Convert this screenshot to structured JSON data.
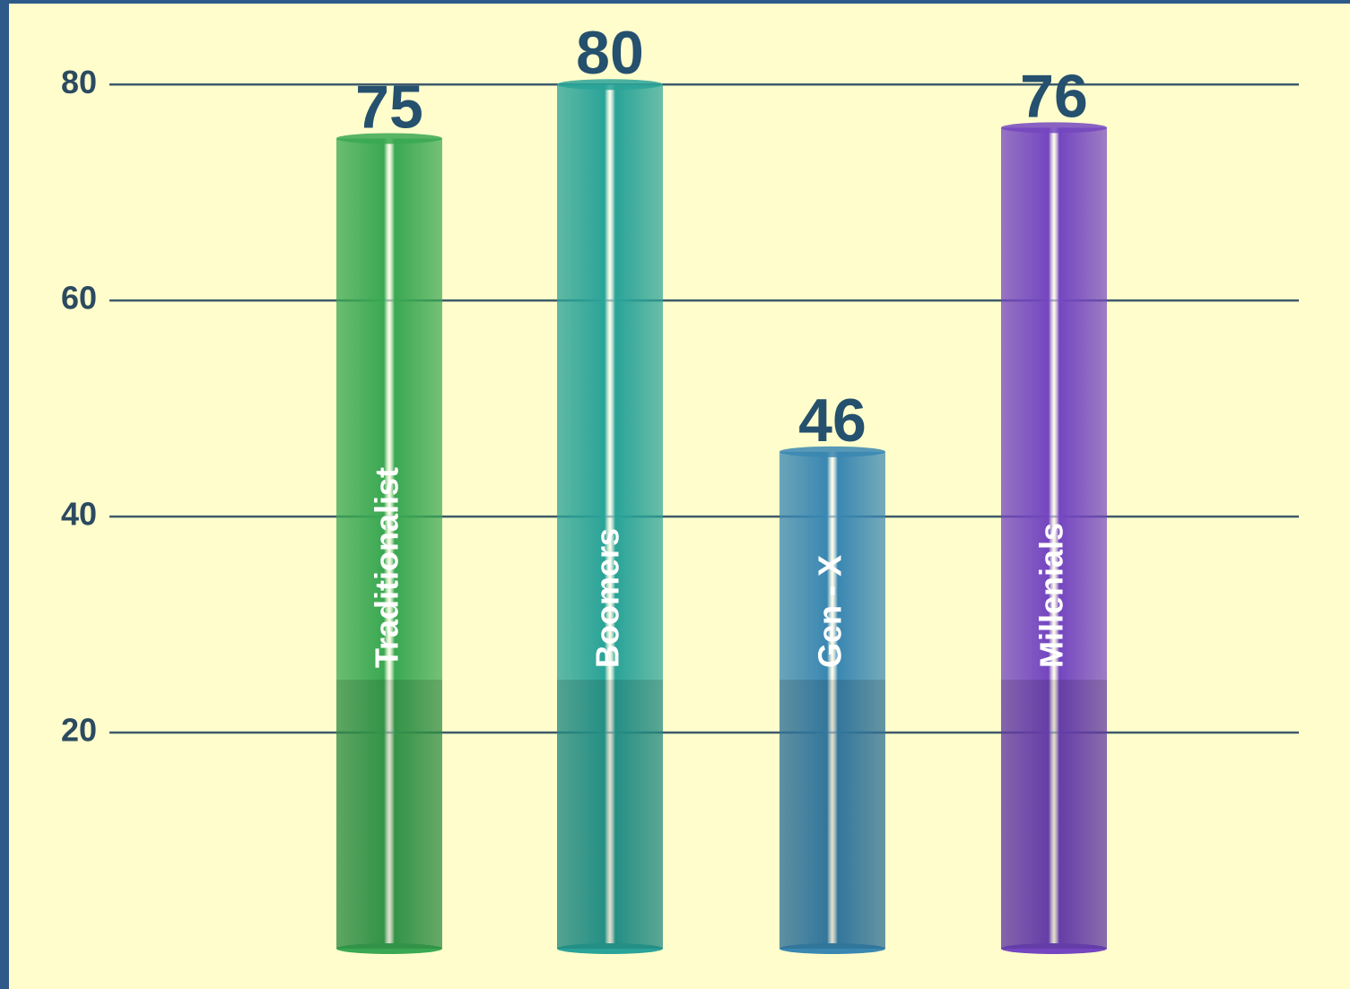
{
  "chart_data": {
    "type": "bar",
    "categories": [
      "Traditionalist",
      "Boomers",
      "Gen - X",
      "Millenials"
    ],
    "values": [
      75,
      80,
      46,
      76
    ],
    "colors": [
      "#3aa852",
      "#2aa398",
      "#3a87b2",
      "#7446c0"
    ],
    "ylim": [
      0,
      85
    ],
    "yticks": [
      20,
      40,
      60,
      80
    ],
    "grid": true
  }
}
